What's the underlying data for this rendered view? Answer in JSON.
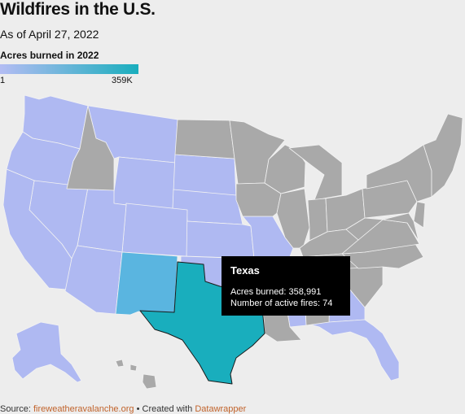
{
  "header": {
    "title": "Wildfires in the U.S.",
    "subtitle": "As of April 27, 2022"
  },
  "legend": {
    "title": "Acres burned in 2022",
    "min_label": "1",
    "max_label": "359K",
    "color_low": "#b3bcf3",
    "color_high": "#19aebd"
  },
  "colors": {
    "no_data": "#a9a9a9",
    "low": "#afb9f2",
    "new_mexico": "#5ab5e0",
    "texas": "#19aebd"
  },
  "tooltip": {
    "state": "Texas",
    "acres_label": "Acres burned:",
    "acres_value": "358,991",
    "fires_label": "Number of active fires:",
    "fires_value": "74"
  },
  "footer": {
    "source_label": "Source:",
    "source_name": "fireweatheravalanche.org",
    "separator": "•",
    "created_label": "Created with",
    "tool_name": "Datawrapper"
  }
}
